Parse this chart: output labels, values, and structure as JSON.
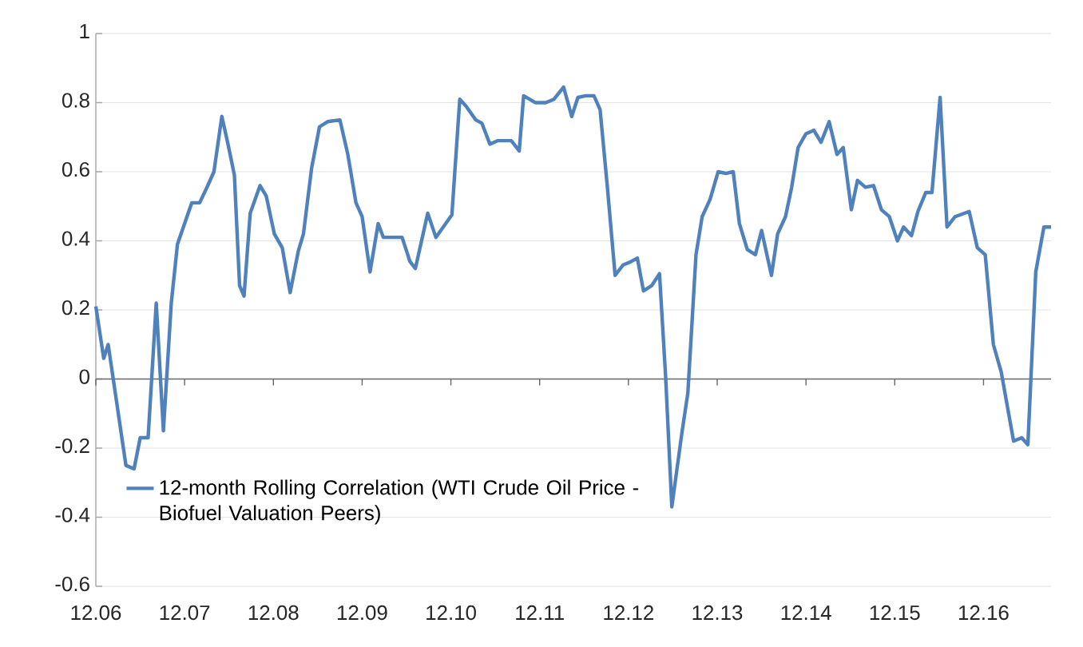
{
  "chart_data": {
    "type": "line",
    "x": [
      "2006-12-01",
      "2007-01-03",
      "2007-01-21",
      "2007-04-03",
      "2007-05-06",
      "2007-06-01",
      "2007-07-03",
      "2007-08-06",
      "2007-09-05",
      "2007-10-07",
      "2007-11-02",
      "2007-12-30",
      "2008-02-02",
      "2008-03-05",
      "2008-03-30",
      "2008-05-02",
      "2008-05-27",
      "2008-06-23",
      "2008-07-14",
      "2008-08-02",
      "2008-08-27",
      "2008-10-07",
      "2008-11-02",
      "2008-12-05",
      "2009-01-07",
      "2009-02-09",
      "2009-03-12",
      "2009-04-03",
      "2009-05-06",
      "2009-06-08",
      "2009-07-11",
      "2009-09-01",
      "2009-10-03",
      "2009-11-06",
      "2009-12-01",
      "2010-01-03",
      "2010-02-06",
      "2010-02-27",
      "2010-05-13",
      "2010-06-15",
      "2010-07-07",
      "2010-08-27",
      "2010-09-30",
      "2010-12-05",
      "2011-01-07",
      "2011-02-02",
      "2011-03-12",
      "2011-04-07",
      "2011-05-09",
      "2011-06-12",
      "2011-08-06",
      "2011-09-08",
      "2011-09-26",
      "2011-11-13",
      "2011-12-26",
      "2012-01-29",
      "2012-03-08",
      "2012-04-11",
      "2012-05-06",
      "2012-06-08",
      "2012-07-11",
      "2012-08-06",
      "2012-09-05",
      "2012-10-07",
      "2012-11-09",
      "2012-12-12",
      "2013-01-07",
      "2013-02-02",
      "2013-03-05",
      "2013-04-07",
      "2013-05-02",
      "2013-05-27",
      "2013-07-07",
      "2013-08-02",
      "2013-09-05",
      "2013-09-30",
      "2013-11-02",
      "2013-12-05",
      "2014-01-07",
      "2014-02-06",
      "2014-03-01",
      "2014-04-03",
      "2014-05-06",
      "2014-06-01",
      "2014-07-11",
      "2014-08-06",
      "2014-09-08",
      "2014-10-03",
      "2014-10-29",
      "2014-12-01",
      "2015-01-03",
      "2015-02-02",
      "2015-03-05",
      "2015-04-07",
      "2015-05-02",
      "2015-06-05",
      "2015-06-30",
      "2015-08-02",
      "2015-09-05",
      "2015-10-07",
      "2015-11-09",
      "2015-12-12",
      "2016-01-07",
      "2016-02-09",
      "2016-03-05",
      "2016-04-07",
      "2016-05-02",
      "2016-06-05",
      "2016-07-03",
      "2016-08-06",
      "2016-10-03",
      "2016-11-06",
      "2016-12-08",
      "2017-01-11",
      "2017-02-13",
      "2017-04-03",
      "2017-05-06",
      "2017-06-01",
      "2017-07-03",
      "2017-08-06",
      "2017-09-05"
    ],
    "series": [
      {
        "name": "12-month Rolling Correlation (WTI Crude Oil Price - Biofuel Valuation Peers)",
        "color": "#4f81bd",
        "values": [
          0.21,
          0.06,
          0.1,
          -0.25,
          -0.26,
          -0.17,
          -0.17,
          0.22,
          -0.15,
          0.22,
          0.39,
          0.51,
          0.51,
          0.56,
          0.6,
          0.76,
          0.68,
          0.59,
          0.27,
          0.24,
          0.48,
          0.56,
          0.53,
          0.42,
          0.38,
          0.25,
          0.37,
          0.42,
          0.61,
          0.73,
          0.745,
          0.75,
          0.65,
          0.51,
          0.47,
          0.31,
          0.45,
          0.41,
          0.41,
          0.34,
          0.32,
          0.48,
          0.41,
          0.475,
          0.81,
          0.79,
          0.75,
          0.74,
          0.68,
          0.69,
          0.69,
          0.66,
          0.82,
          0.8,
          0.8,
          0.81,
          0.845,
          0.76,
          0.815,
          0.82,
          0.82,
          0.78,
          0.56,
          0.3,
          0.33,
          0.34,
          0.35,
          0.255,
          0.27,
          0.305,
          0.005,
          -0.37,
          -0.16,
          -0.04,
          0.36,
          0.47,
          0.52,
          0.6,
          0.595,
          0.6,
          0.45,
          0.375,
          0.36,
          0.43,
          0.3,
          0.42,
          0.47,
          0.555,
          0.67,
          0.71,
          0.72,
          0.685,
          0.745,
          0.65,
          0.67,
          0.49,
          0.575,
          0.555,
          0.56,
          0.49,
          0.47,
          0.4,
          0.44,
          0.415,
          0.485,
          0.54,
          0.54,
          0.815,
          0.44,
          0.47,
          0.485,
          0.38,
          0.36,
          0.1,
          0.02,
          -0.18,
          -0.17,
          -0.19,
          0.31,
          0.44,
          0.44
        ]
      }
    ],
    "xlim": [
      "2006-12-01",
      "2017-09-05"
    ],
    "xticks": [
      {
        "value": "2006-12",
        "label": "12.06"
      },
      {
        "value": "2007-12",
        "label": "12.07"
      },
      {
        "value": "2008-12",
        "label": "12.08"
      },
      {
        "value": "2009-12",
        "label": "12.09"
      },
      {
        "value": "2010-12",
        "label": "12.10"
      },
      {
        "value": "2011-12",
        "label": "12.11"
      },
      {
        "value": "2012-12",
        "label": "12.12"
      },
      {
        "value": "2013-12",
        "label": "12.13"
      },
      {
        "value": "2014-12",
        "label": "12.14"
      },
      {
        "value": "2015-12",
        "label": "12.15"
      },
      {
        "value": "2016-12",
        "label": "12.16"
      }
    ],
    "ylim": [
      -0.6,
      1
    ],
    "yticks": [
      -0.6,
      -0.4,
      -0.2,
      0,
      0.2,
      0.4,
      0.6,
      0.8,
      1
    ],
    "grid": "y",
    "legend": "bottom left",
    "marker": "none",
    "line_style": "solid"
  }
}
